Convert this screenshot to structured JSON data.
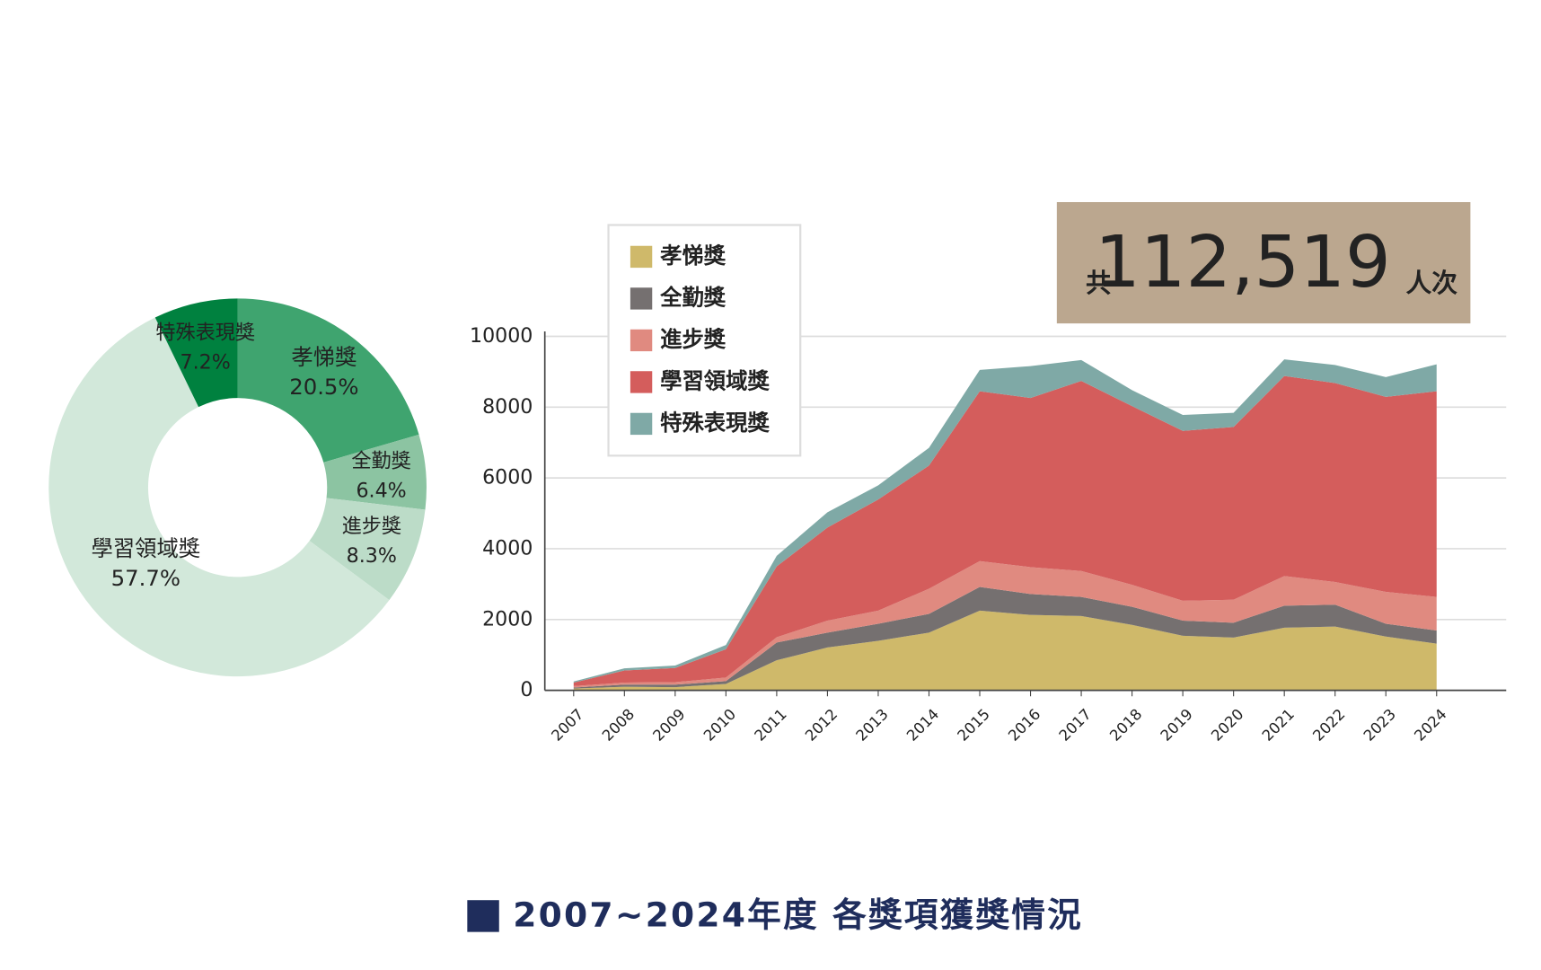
{
  "chart_data": [
    {
      "type": "pie",
      "categories": [
        "孝悌獎",
        "全勤獎",
        "進步獎",
        "學習領域獎",
        "特殊表現獎"
      ],
      "values": [
        20.5,
        6.4,
        8.3,
        57.7,
        7.2
      ],
      "value_labels": [
        "20.5%",
        "6.4%",
        "8.3%",
        "57.7%",
        "7.2%"
      ],
      "colors": [
        "#3fa46f",
        "#8cc4a2",
        "#bcdcc8",
        "#d2e8da",
        "#00813f"
      ]
    },
    {
      "type": "area",
      "stacked": true,
      "grid": true,
      "legend": "upper left",
      "categories": [
        "2007",
        "2008",
        "2009",
        "2010",
        "2011",
        "2012",
        "2013",
        "2014",
        "2015",
        "2016",
        "2017",
        "2018",
        "2019",
        "2020",
        "2021",
        "2022",
        "2023",
        "2024"
      ],
      "ylim": [
        0,
        10000
      ],
      "yticks": [
        0,
        2000,
        4000,
        6000,
        8000,
        10000
      ],
      "series": [
        {
          "name": "孝悌獎",
          "color": "#cfb96a",
          "values": [
            50,
            100,
            90,
            180,
            850,
            1210,
            1400,
            1630,
            2250,
            2130,
            2100,
            1850,
            1540,
            1490,
            1770,
            1800,
            1520,
            1320
          ]
        },
        {
          "name": "全勤獎",
          "color": "#757070",
          "values": [
            30,
            60,
            70,
            80,
            500,
            420,
            480,
            530,
            670,
            590,
            540,
            510,
            430,
            420,
            620,
            620,
            360,
            370
          ]
        },
        {
          "name": "進步獎",
          "color": "#e08a80",
          "values": [
            40,
            60,
            70,
            100,
            150,
            340,
            370,
            710,
            730,
            760,
            730,
            620,
            560,
            650,
            840,
            640,
            900,
            950
          ]
        },
        {
          "name": "學習領域獎",
          "color": "#d45d5c",
          "values": [
            100,
            340,
            400,
            800,
            2000,
            2630,
            3140,
            3480,
            4800,
            4780,
            5370,
            5050,
            4800,
            4880,
            5650,
            5620,
            5510,
            5810
          ]
        },
        {
          "name": "特殊表現獎",
          "color": "#7fa9a6",
          "values": [
            30,
            60,
            70,
            120,
            300,
            430,
            400,
            500,
            600,
            900,
            590,
            450,
            450,
            400,
            470,
            510,
            560,
            760
          ]
        }
      ]
    }
  ],
  "total": {
    "prefix": "共",
    "value": "112,519",
    "suffix": "人次"
  },
  "caption": "2007~2024年度 各獎項獲獎情況"
}
